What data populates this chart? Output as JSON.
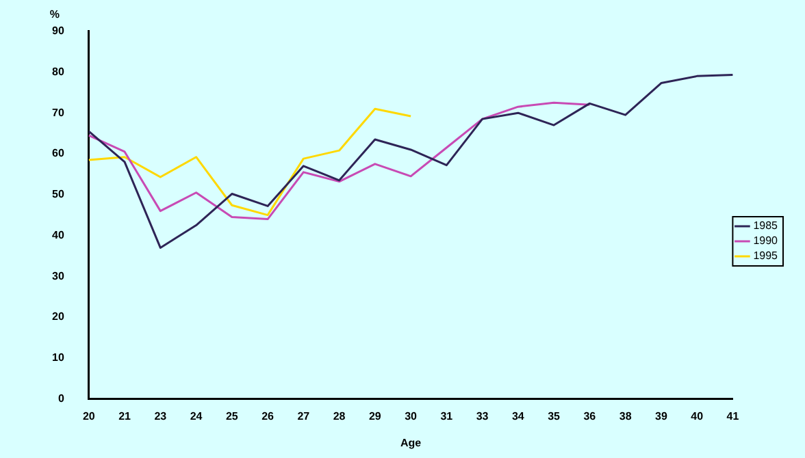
{
  "chart_data": {
    "type": "line",
    "xlabel": "Age",
    "ylabel": "%",
    "categories": [
      "20",
      "21",
      "23",
      "24",
      "25",
      "26",
      "27",
      "28",
      "29",
      "30",
      "31",
      "33",
      "34",
      "35",
      "36",
      "38",
      "39",
      "40",
      "41"
    ],
    "series": [
      {
        "name": "1985",
        "color": "#2e2456",
        "values": [
          65.5,
          58,
          37,
          42.5,
          50.2,
          47.2,
          57,
          53.5,
          63.5,
          61,
          57.2,
          68.5,
          70,
          67,
          72.3,
          69.5,
          77.3,
          79,
          79.3
        ]
      },
      {
        "name": "1990",
        "color": "#c84ab4",
        "values": [
          64.5,
          60.5,
          46,
          50.5,
          44.5,
          44,
          55.5,
          53.2,
          57.5,
          54.5,
          61.5,
          68.5,
          71.5,
          72.5,
          72,
          null,
          null,
          null,
          null
        ]
      },
      {
        "name": "1995",
        "color": "#ffd800",
        "values": [
          58.5,
          59.2,
          54.3,
          59.2,
          47.4,
          45,
          58.8,
          60.8,
          71,
          69.2,
          null,
          null,
          null,
          null,
          null,
          null,
          null,
          null,
          null
        ]
      }
    ],
    "ylim": [
      0,
      90
    ],
    "yticks": [
      0,
      10,
      20,
      30,
      40,
      50,
      60,
      70,
      80,
      90
    ],
    "grid": false,
    "legend": "right",
    "marker": "none",
    "line_style": "solid"
  }
}
